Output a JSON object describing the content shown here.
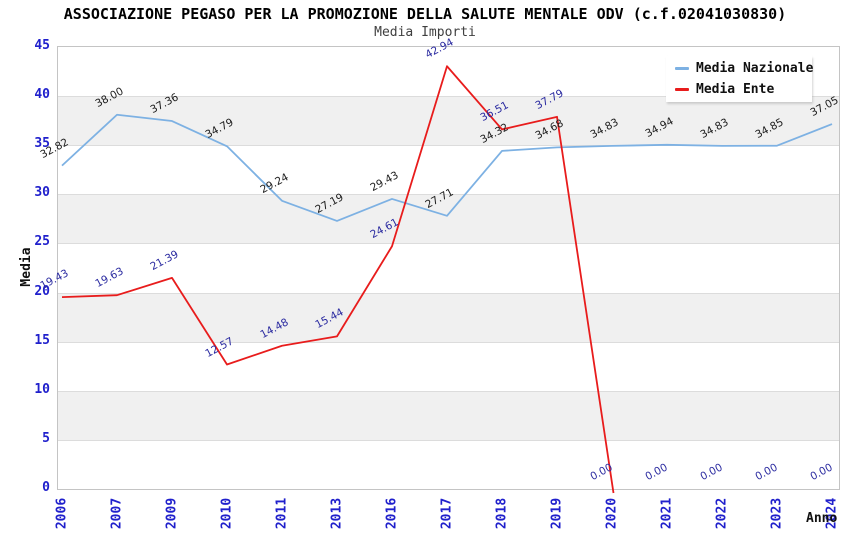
{
  "header": {
    "title": "ASSOCIAZIONE PEGASO PER LA PROMOZIONE DELLA SALUTE MENTALE ODV (c.f.02041030830)",
    "subtitle": "Media Importi"
  },
  "axes": {
    "y_label": "Media",
    "x_label": "Anno",
    "y_ticks": [
      0,
      5,
      10,
      15,
      20,
      25,
      30,
      35,
      40,
      45
    ],
    "tick_color": "#2020cc"
  },
  "colors": {
    "nazionale_line": "#7db1e3",
    "ente_line": "#e81c1c",
    "nazionale_label": "#1c1c1c",
    "ente_label": "#2a2aa0",
    "band": "#f0f0f0",
    "gridline": "#dcdcdc"
  },
  "chart_data": {
    "type": "line",
    "title": "ASSOCIAZIONE PEGASO PER LA PROMOZIONE DELLA SALUTE MENTALE ODV (c.f.02041030830)",
    "subtitle": "Media Importi",
    "xlabel": "Anno",
    "ylabel": "Media",
    "ylim": [
      0,
      45
    ],
    "y_step": 5,
    "grid": true,
    "legend_position": "top-right",
    "categories": [
      "2006",
      "2007",
      "2009",
      "2010",
      "2011",
      "2013",
      "2016",
      "2017",
      "2018",
      "2019",
      "2020",
      "2021",
      "2022",
      "2023",
      "2024"
    ],
    "series": [
      {
        "name": "Media Nazionale",
        "color": "#7db1e3",
        "label_color": "#1c1c1c",
        "values": [
          32.82,
          38.0,
          37.36,
          34.79,
          29.24,
          27.19,
          29.43,
          27.71,
          34.32,
          34.68,
          34.83,
          34.94,
          34.83,
          34.85,
          37.05
        ]
      },
      {
        "name": "Media Ente",
        "color": "#e81c1c",
        "label_color": "#2a2aa0",
        "values": [
          19.43,
          19.63,
          21.39,
          12.57,
          14.48,
          15.44,
          24.61,
          42.94,
          36.51,
          37.79,
          0.0,
          0.0,
          0.0,
          0.0,
          0.0
        ]
      }
    ]
  }
}
